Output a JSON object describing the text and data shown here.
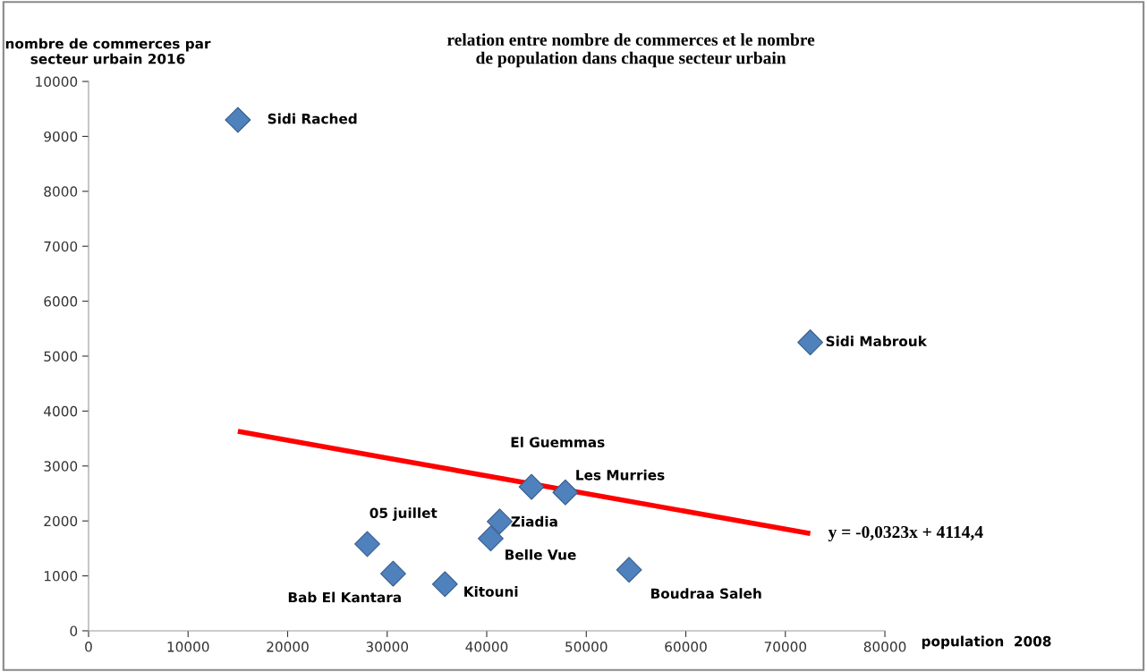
{
  "chart_data": {
    "type": "scatter",
    "title": "relation entre nombre de commerces et le nombre\nde population dans chaque secteur urbain",
    "xlabel": "population  2008",
    "ylabel": "nombre de commerces par\nsecteur urbain 2016",
    "grid": false,
    "legend": false,
    "xlim": [
      0,
      80000
    ],
    "xticks": [
      0,
      10000,
      20000,
      30000,
      40000,
      50000,
      60000,
      70000,
      80000
    ],
    "ylim": [
      0,
      10000
    ],
    "yticks": [
      0,
      1000,
      2000,
      3000,
      4000,
      5000,
      6000,
      7000,
      8000,
      9000,
      10000
    ],
    "series": [
      {
        "marker": "diamond",
        "color": "#4f81bd",
        "x": [
          15000,
          72500,
          44500,
          47900,
          41300,
          40400,
          28000,
          30600,
          35800,
          54300
        ],
        "values": [
          9300,
          5250,
          2620,
          2520,
          1990,
          1680,
          1580,
          1040,
          850,
          1110
        ]
      },
      {
        "type": "line",
        "color": "#ff0000",
        "x": [
          15000,
          72500
        ],
        "values": [
          3630,
          1770
        ]
      }
    ],
    "annotations": [
      {
        "text": "Sidi Rached",
        "x": 15000,
        "y": 9300
      },
      {
        "text": "Sidi Mabrouk",
        "x": 72500,
        "y": 5250
      },
      {
        "text": "El Guemmas",
        "x": 44500,
        "y": 2620
      },
      {
        "text": "Les Murries",
        "x": 47900,
        "y": 2520
      },
      {
        "text": "Ziadia",
        "x": 41300,
        "y": 1990
      },
      {
        "text": "Belle Vue",
        "x": 40400,
        "y": 1680
      },
      {
        "text": "05 juillet",
        "x": 28000,
        "y": 1580
      },
      {
        "text": "Bab El Kantara",
        "x": 30600,
        "y": 1040
      },
      {
        "text": "Kitouni",
        "x": 35800,
        "y": 850
      },
      {
        "text": "Boudraa Saleh",
        "x": 54300,
        "y": 1110
      },
      "y = -0,0323x + 4114,4"
    ]
  }
}
